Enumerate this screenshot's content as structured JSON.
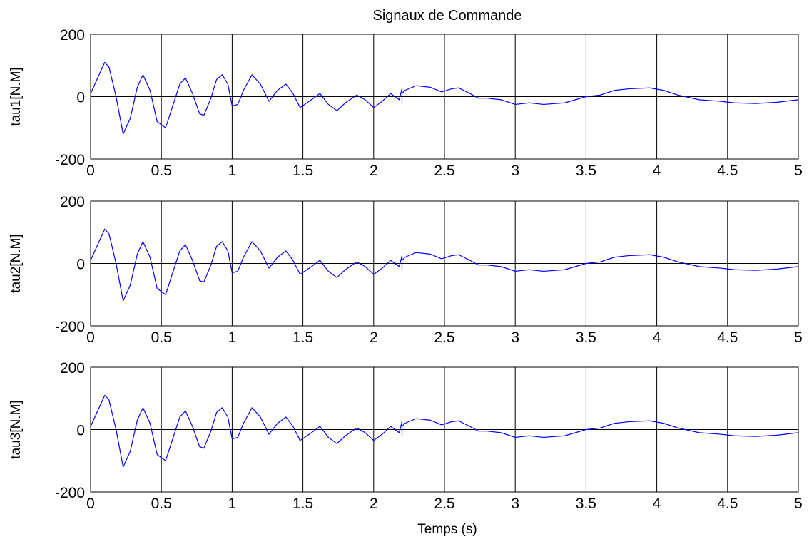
{
  "figure": {
    "title": "Signaux de Commande",
    "xlabel": "Temps  (s)"
  },
  "colors": {
    "line": "#0000ff",
    "grid": "#000000",
    "axes": "#000000",
    "background": "#ffffff"
  },
  "chart_data": [
    {
      "type": "line",
      "title": "Signaux de Commande",
      "xlabel": "",
      "ylabel": "tau1[N.M]",
      "xlim": [
        0,
        5
      ],
      "ylim": [
        -200,
        200
      ],
      "xticks": [
        "0",
        "0.5",
        "1",
        "1.5",
        "2",
        "2.5",
        "3",
        "3.5",
        "4",
        "4.5",
        "5"
      ],
      "yticks": [
        "-200",
        "0",
        "200"
      ],
      "grid": "vertical-only",
      "zero_line": true,
      "series": [
        {
          "x": [
            0,
            0.05,
            0.1,
            0.13,
            0.18,
            0.23,
            0.28,
            0.33,
            0.37,
            0.42,
            0.47,
            0.53,
            0.58,
            0.63,
            0.67,
            0.72,
            0.77,
            0.8,
            0.85,
            0.89,
            0.93,
            0.97,
            1.0,
            1.04,
            1.08,
            1.14,
            1.2,
            1.26,
            1.32,
            1.38,
            1.43,
            1.48,
            1.56,
            1.62,
            1.68,
            1.74,
            1.8,
            1.88,
            1.94,
            2.0,
            2.06,
            2.12,
            2.18,
            2.2,
            2.2,
            2.2,
            2.22,
            2.3,
            2.4,
            2.48,
            2.55,
            2.6,
            2.68,
            2.74,
            2.8,
            2.9,
            3.0,
            3.1,
            3.2,
            3.35,
            3.5,
            3.6,
            3.7,
            3.8,
            3.95,
            4.05,
            4.15,
            4.3,
            4.45,
            4.55,
            4.7,
            4.85,
            5.0
          ],
          "y": [
            10,
            60,
            110,
            95,
            0,
            -120,
            -70,
            30,
            70,
            20,
            -80,
            -100,
            -30,
            40,
            60,
            10,
            -55,
            -60,
            -5,
            55,
            70,
            40,
            -30,
            -25,
            20,
            70,
            40,
            -15,
            20,
            40,
            10,
            -35,
            -10,
            10,
            -25,
            -45,
            -20,
            5,
            -10,
            -35,
            -15,
            10,
            -10,
            25,
            -20,
            10,
            20,
            35,
            30,
            15,
            25,
            28,
            10,
            -5,
            -5,
            -10,
            -25,
            -20,
            -25,
            -20,
            0,
            5,
            20,
            25,
            28,
            20,
            5,
            -10,
            -15,
            -20,
            -22,
            -18,
            -10
          ]
        }
      ]
    },
    {
      "type": "line",
      "title": "",
      "xlabel": "",
      "ylabel": "tau2[N.M]",
      "xlim": [
        0,
        5
      ],
      "ylim": [
        -200,
        200
      ],
      "xticks": [
        "0",
        "0.5",
        "1",
        "1.5",
        "2",
        "2.5",
        "3",
        "3.5",
        "4",
        "4.5",
        "5"
      ],
      "yticks": [
        "-200",
        "0",
        "200"
      ],
      "grid": "vertical-only",
      "zero_line": true,
      "series": [
        {
          "x": [
            0,
            0.05,
            0.1,
            0.13,
            0.18,
            0.23,
            0.28,
            0.33,
            0.37,
            0.42,
            0.47,
            0.53,
            0.58,
            0.63,
            0.67,
            0.72,
            0.77,
            0.8,
            0.85,
            0.89,
            0.93,
            0.97,
            1.0,
            1.04,
            1.08,
            1.14,
            1.2,
            1.26,
            1.32,
            1.38,
            1.43,
            1.48,
            1.56,
            1.62,
            1.68,
            1.74,
            1.8,
            1.88,
            1.94,
            2.0,
            2.06,
            2.12,
            2.18,
            2.2,
            2.2,
            2.2,
            2.22,
            2.3,
            2.4,
            2.48,
            2.55,
            2.6,
            2.68,
            2.74,
            2.8,
            2.9,
            3.0,
            3.1,
            3.2,
            3.35,
            3.5,
            3.6,
            3.7,
            3.8,
            3.95,
            4.05,
            4.15,
            4.3,
            4.45,
            4.55,
            4.7,
            4.85,
            5.0
          ],
          "y": [
            10,
            60,
            110,
            95,
            0,
            -120,
            -70,
            30,
            70,
            20,
            -80,
            -100,
            -30,
            40,
            60,
            10,
            -55,
            -60,
            -5,
            55,
            70,
            40,
            -30,
            -25,
            20,
            70,
            40,
            -15,
            20,
            40,
            10,
            -35,
            -10,
            10,
            -25,
            -45,
            -20,
            5,
            -10,
            -35,
            -15,
            10,
            -10,
            25,
            -20,
            10,
            20,
            35,
            30,
            15,
            25,
            28,
            10,
            -5,
            -5,
            -10,
            -25,
            -20,
            -25,
            -20,
            0,
            5,
            20,
            25,
            28,
            20,
            5,
            -10,
            -15,
            -20,
            -22,
            -18,
            -10
          ]
        }
      ]
    },
    {
      "type": "line",
      "title": "",
      "xlabel": "Temps  (s)",
      "ylabel": "tau3[N.M]",
      "xlim": [
        0,
        5
      ],
      "ylim": [
        -200,
        200
      ],
      "xticks": [
        "0",
        "0.5",
        "1",
        "1.5",
        "2",
        "2.5",
        "3",
        "3.5",
        "4",
        "4.5",
        "5"
      ],
      "yticks": [
        "-200",
        "0",
        "200"
      ],
      "grid": "vertical-only",
      "zero_line": true,
      "series": [
        {
          "x": [
            0,
            0.05,
            0.1,
            0.13,
            0.18,
            0.23,
            0.28,
            0.33,
            0.37,
            0.42,
            0.47,
            0.53,
            0.58,
            0.63,
            0.67,
            0.72,
            0.77,
            0.8,
            0.85,
            0.89,
            0.93,
            0.97,
            1.0,
            1.04,
            1.08,
            1.14,
            1.2,
            1.26,
            1.32,
            1.38,
            1.43,
            1.48,
            1.56,
            1.62,
            1.68,
            1.74,
            1.8,
            1.88,
            1.94,
            2.0,
            2.06,
            2.12,
            2.18,
            2.2,
            2.2,
            2.2,
            2.22,
            2.3,
            2.4,
            2.48,
            2.55,
            2.6,
            2.68,
            2.74,
            2.8,
            2.9,
            3.0,
            3.1,
            3.2,
            3.35,
            3.5,
            3.6,
            3.7,
            3.8,
            3.95,
            4.05,
            4.15,
            4.3,
            4.45,
            4.55,
            4.7,
            4.85,
            5.0
          ],
          "y": [
            10,
            60,
            110,
            95,
            0,
            -120,
            -70,
            30,
            70,
            20,
            -80,
            -100,
            -30,
            40,
            60,
            10,
            -55,
            -60,
            -5,
            55,
            70,
            40,
            -30,
            -25,
            20,
            70,
            40,
            -15,
            20,
            40,
            10,
            -35,
            -10,
            10,
            -25,
            -45,
            -20,
            5,
            -10,
            -35,
            -15,
            10,
            -10,
            25,
            -20,
            10,
            20,
            35,
            30,
            15,
            25,
            28,
            10,
            -5,
            -5,
            -10,
            -25,
            -20,
            -25,
            -20,
            0,
            5,
            20,
            25,
            28,
            20,
            5,
            -10,
            -15,
            -20,
            -22,
            -18,
            -10
          ]
        }
      ]
    }
  ]
}
